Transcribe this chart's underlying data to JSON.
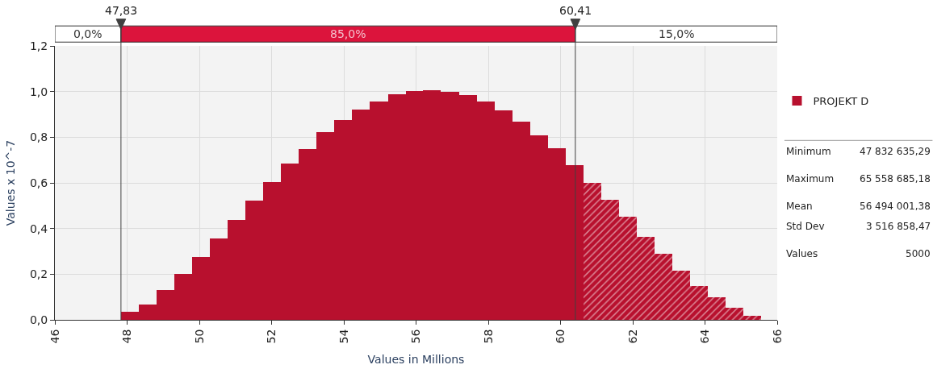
{
  "chart_data": {
    "type": "histogram",
    "xlabel": "Values in Millions",
    "ylabel": "Values x 10^-7",
    "bins": [
      47.83,
      48.32,
      48.81,
      49.31,
      49.8,
      50.29,
      50.78,
      51.28,
      51.77,
      52.26,
      52.75,
      53.25,
      53.74,
      54.23,
      54.72,
      55.22,
      55.71,
      56.2,
      56.69,
      57.19,
      57.68,
      58.17,
      58.66,
      59.16,
      59.65,
      60.14,
      60.63,
      61.13,
      61.62,
      62.11,
      62.6,
      63.1,
      63.59,
      64.08,
      64.57,
      65.07,
      65.56
    ],
    "series": [
      {
        "name": "PROJEKT D",
        "color": "#b8102e",
        "values": [
          0.035,
          0.068,
          0.13,
          0.2,
          0.276,
          0.355,
          0.436,
          0.521,
          0.605,
          0.685,
          0.75,
          0.821,
          0.874,
          0.922,
          0.957,
          0.99,
          1.004,
          1.006,
          1.0,
          0.986,
          0.956,
          0.916,
          0.87,
          0.809,
          0.751,
          0.679,
          0.6,
          0.525,
          0.451,
          0.365,
          0.291,
          0.217,
          0.15,
          0.099,
          0.052,
          0.019
        ]
      }
    ],
    "xlim": [
      46,
      66
    ],
    "xticks": [
      46,
      48,
      50,
      52,
      54,
      56,
      58,
      60,
      62,
      64,
      66
    ],
    "ylim": [
      0,
      1.2
    ],
    "yticks": [
      {
        "value": 0,
        "label": "0,0"
      },
      {
        "value": 0.2,
        "label": "0,2"
      },
      {
        "value": 0.4,
        "label": "0,4"
      },
      {
        "value": 0.6,
        "label": "0,6"
      },
      {
        "value": 0.8,
        "label": "0,8"
      },
      {
        "value": 1.0,
        "label": "1,0"
      },
      {
        "value": 1.2,
        "label": "1,2"
      }
    ],
    "ref_lines": [
      {
        "axis": "x",
        "value": 47.83,
        "label": "47,83",
        "color": "#404040"
      },
      {
        "axis": "x",
        "value": 60.41,
        "label": "60,41",
        "color": "#404040"
      }
    ],
    "annotations": [
      "0,0%",
      "85,0%",
      "15,0%",
      "Minimum",
      "47 832 635,29",
      "Maximum",
      "65 558 685,18",
      "Mean",
      "56 494 001,38",
      "Std Dev",
      "3 516 858,47",
      "Values",
      "5000"
    ],
    "grid": true,
    "legend": "right"
  }
}
